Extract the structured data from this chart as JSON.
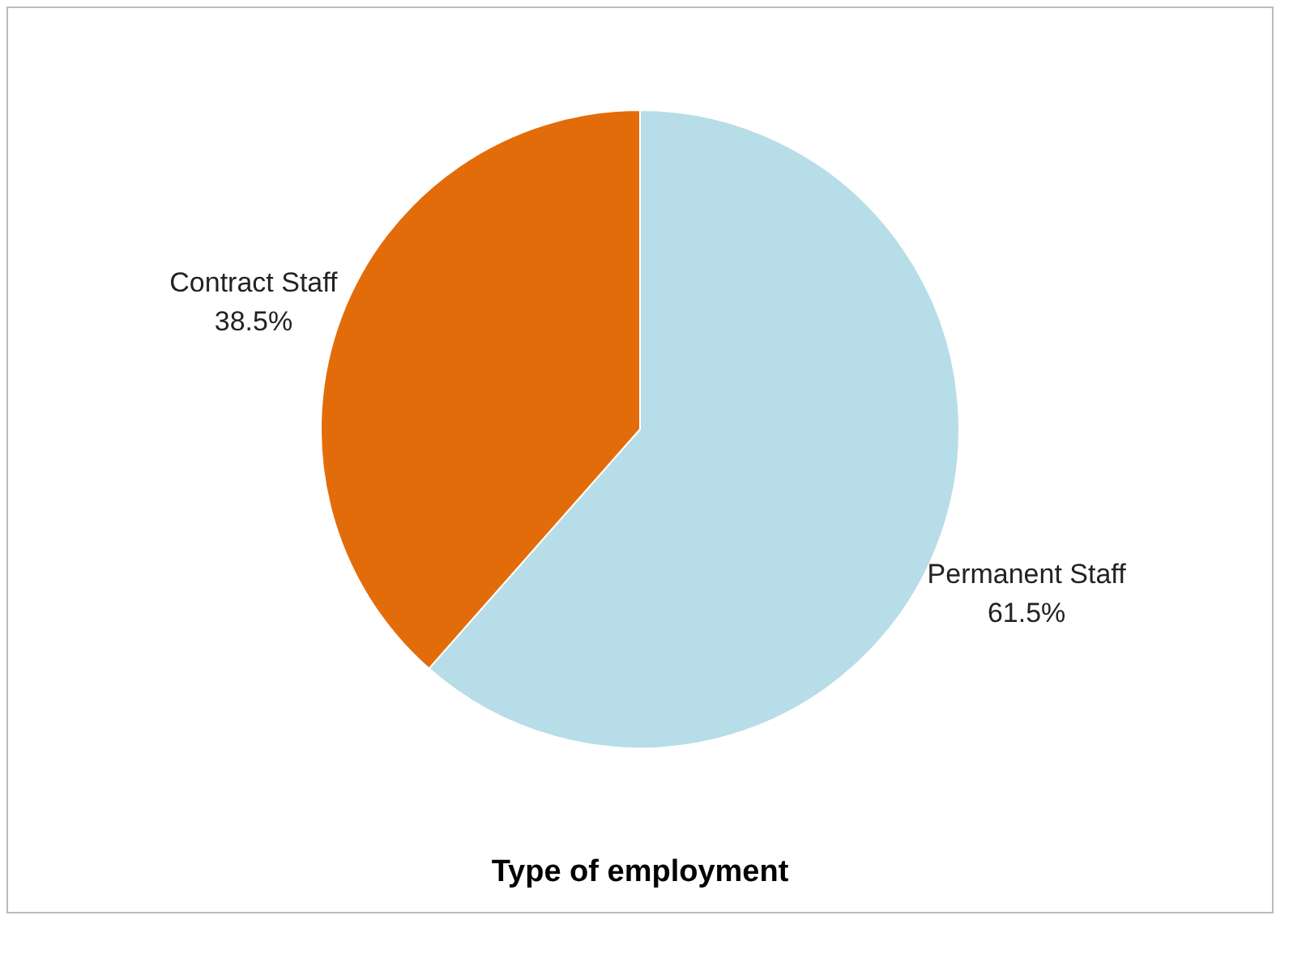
{
  "chart_data": {
    "type": "pie",
    "title": "Type of employment",
    "categories": [
      "Permanent Staff",
      "Contract Staff"
    ],
    "values": [
      61.5,
      38.5
    ],
    "colors": [
      "#b7dde8",
      "#e36c0a"
    ],
    "value_labels": [
      "61.5%",
      "38.5%"
    ],
    "legend": false
  }
}
